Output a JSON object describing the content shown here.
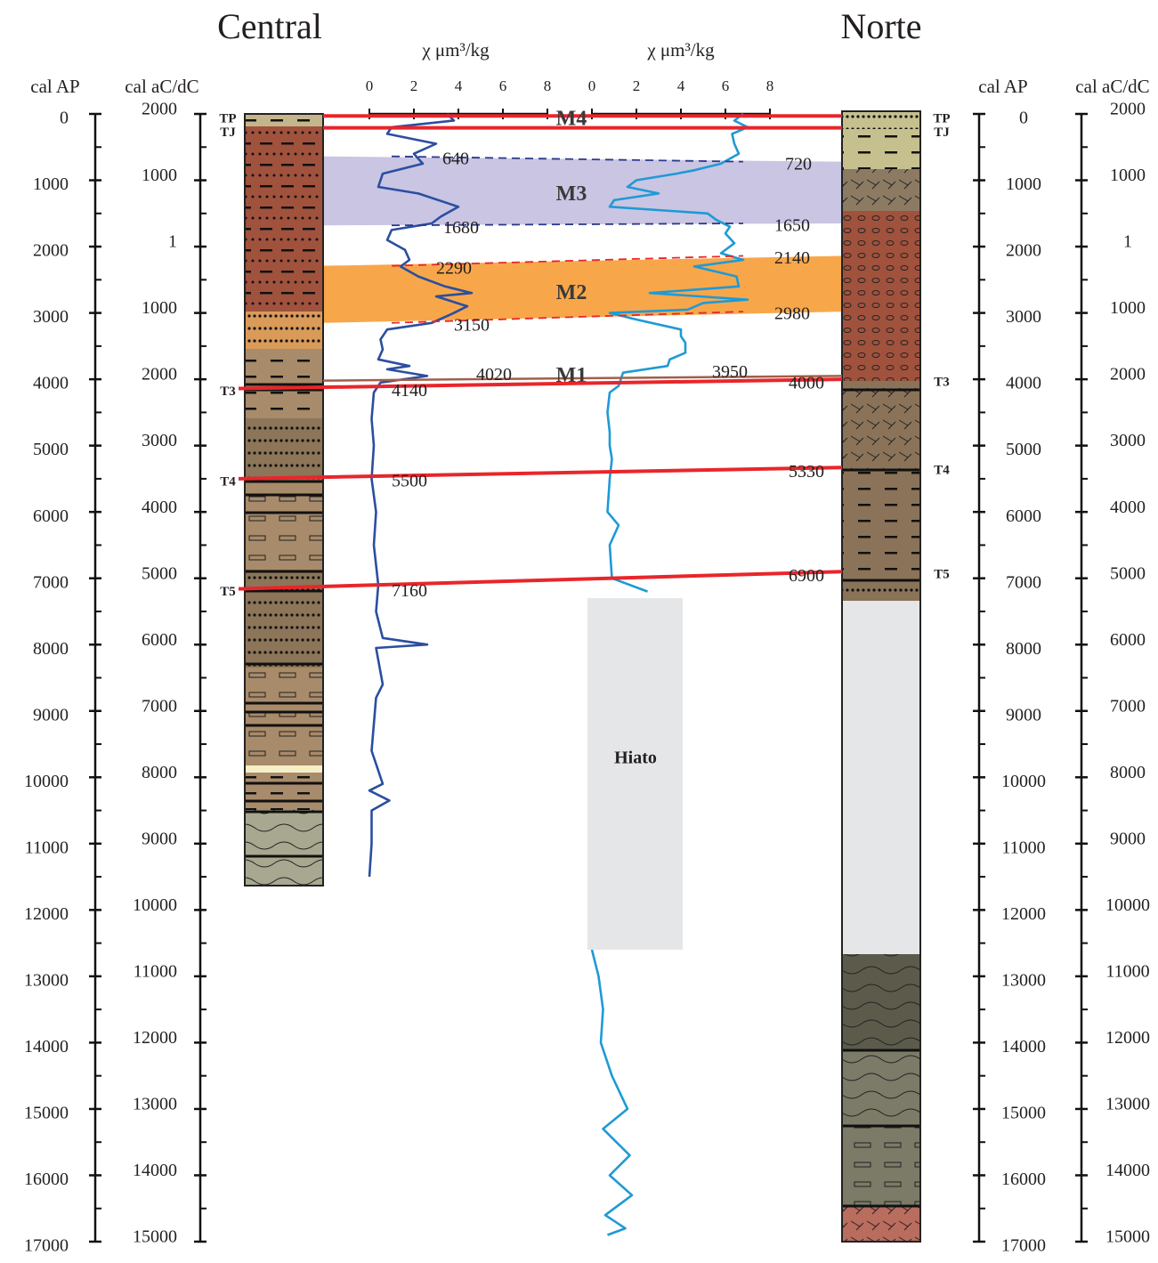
{
  "titles": {
    "central": "Central",
    "norte": "Norte"
  },
  "axis_labels": {
    "ap_left": "cal AP",
    "ac_left": "cal aC/dC",
    "ap_right": "cal AP",
    "ac_right": "cal aC/dC"
  },
  "age_axis": {
    "lim": [
      0,
      17000
    ],
    "ticks": [
      0,
      1000,
      2000,
      3000,
      4000,
      5000,
      6000,
      7000,
      8000,
      9000,
      10000,
      11000,
      12000,
      13000,
      14000,
      15000,
      16000,
      17000
    ]
  },
  "ac_tick_labels": [
    "2000",
    "1000",
    "1",
    "1000",
    "2000",
    "3000",
    "4000",
    "5000",
    "6000",
    "7000",
    "8000",
    "9000",
    "10000",
    "11000",
    "12000",
    "13000",
    "14000",
    "15000"
  ],
  "chi_axis": {
    "label": "χ μm³/kg",
    "lim": [
      0,
      8
    ],
    "ticks": [
      0,
      2,
      4,
      6,
      8
    ]
  },
  "horizons": [
    {
      "label": "TP",
      "central": 30,
      "norte": 30
    },
    {
      "label": "TJ",
      "central": 210,
      "norte": 210
    },
    {
      "label": "T3",
      "central": 4140,
      "norte": 4000
    },
    {
      "label": "T4",
      "central": 5500,
      "norte": 5330
    },
    {
      "label": "T5",
      "central": 7160,
      "norte": 6900
    }
  ],
  "zones": [
    {
      "label": "M3",
      "color": "#c9c5e3",
      "line_color": "#2a3a8a",
      "top": {
        "central": 640,
        "norte": 720
      },
      "base": {
        "central": 1680,
        "norte": 1650
      }
    },
    {
      "label": "M2",
      "color": "#f7a74a",
      "line_color": "#e8262b",
      "top": {
        "central": 2290,
        "norte": 2140
      },
      "base": {
        "central": 3150,
        "norte": 2980
      }
    }
  ],
  "m1": {
    "label": "M1",
    "central": 4020,
    "norte": 3950,
    "color": "#a0604a"
  },
  "m4": {
    "label": "M4"
  },
  "hiatus": {
    "label": "Hiato",
    "top": 7300,
    "base": 12600
  },
  "curves": [
    {
      "color": "#2b4ea0",
      "age": [
        0,
        100,
        200,
        300,
        450,
        600,
        750,
        900,
        1100,
        1200,
        1400,
        1550,
        1650,
        1750,
        1900,
        2050,
        2200,
        2300,
        2450,
        2600,
        2700,
        2750,
        2900,
        3000,
        3150,
        3250,
        3400,
        3550,
        3700,
        3800,
        3850,
        3950,
        4050,
        4200,
        4600,
        5000,
        5500,
        6000,
        6500,
        7100,
        7500,
        7900,
        8000,
        8050,
        8600,
        8800,
        9600,
        10100,
        10200,
        10350,
        10500,
        11000,
        11500
      ],
      "chi": [
        3.5,
        3.8,
        1.0,
        0.8,
        3.0,
        2.0,
        2.4,
        0.6,
        0.4,
        2.2,
        4.0,
        3.2,
        2.8,
        1.0,
        0.8,
        1.6,
        1.8,
        1.4,
        2.2,
        3.4,
        4.6,
        3.0,
        4.4,
        3.8,
        2.8,
        0.8,
        0.5,
        0.6,
        0.4,
        1.8,
        0.8,
        2.6,
        0.5,
        0.2,
        0.1,
        0.2,
        0.1,
        0.3,
        0.2,
        0.4,
        0.3,
        0.6,
        2.6,
        0.3,
        0.6,
        0.3,
        0.1,
        0.6,
        0.0,
        0.9,
        0.1,
        0.1,
        0.0
      ]
    },
    {
      "color": "#1e9ad6",
      "age": [
        0,
        100,
        200,
        300,
        450,
        600,
        750,
        850,
        900,
        1000,
        1100,
        1200,
        1300,
        1400,
        1500,
        1600,
        1700,
        1800,
        1950,
        2100,
        2200,
        2300,
        2450,
        2600,
        2700,
        2800,
        2850,
        2950,
        3000,
        3100,
        3250,
        3350,
        3450,
        3600,
        3700,
        3800,
        3900,
        4100,
        4200,
        4500,
        4800,
        5000,
        5200,
        5500,
        6000,
        6200,
        6500,
        7000,
        7200,
        null,
        12600,
        13000,
        13500,
        14000,
        14500,
        15000,
        15300,
        15700,
        16000,
        16300,
        16600,
        16800,
        16900
      ],
      "chi": [
        6.8,
        6.4,
        7.0,
        6.3,
        6.4,
        6.6,
        5.8,
        4.6,
        3.8,
        2.0,
        1.6,
        3.0,
        1.0,
        0.8,
        5.2,
        5.6,
        6.2,
        6.0,
        6.4,
        5.8,
        6.8,
        4.6,
        6.5,
        6.6,
        2.6,
        7.0,
        5.0,
        4.3,
        0.8,
        2.0,
        4.0,
        4.0,
        4.2,
        4.2,
        3.5,
        3.4,
        1.4,
        1.2,
        0.8,
        0.7,
        0.8,
        0.8,
        0.9,
        0.8,
        0.7,
        1.2,
        0.8,
        0.9,
        2.5,
        null,
        0.0,
        0.3,
        0.5,
        0.4,
        0.9,
        1.6,
        0.5,
        1.7,
        0.8,
        1.8,
        0.6,
        1.5,
        0.7
      ]
    }
  ]
}
